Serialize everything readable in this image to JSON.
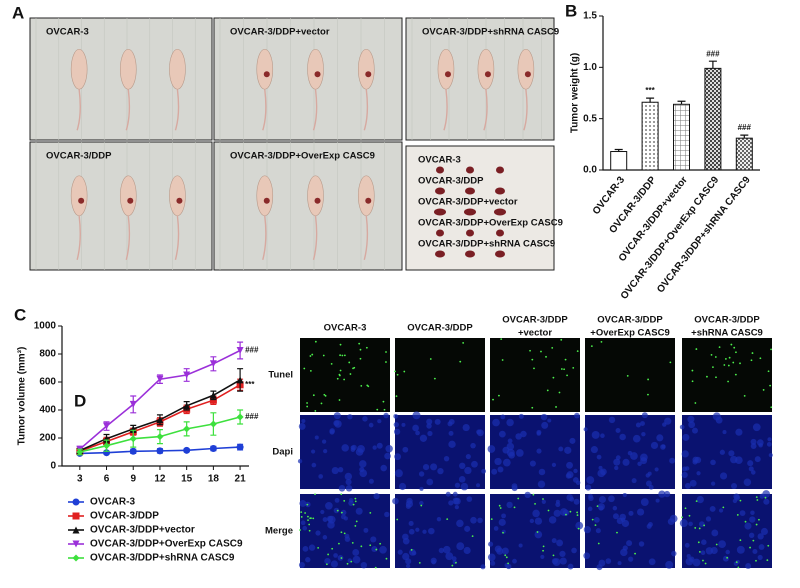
{
  "panels": {
    "a": "A",
    "b": "B",
    "c": "C",
    "d": "D"
  },
  "photo_labels": [
    "OVCAR-3",
    "OVCAR-3/DDP+vector",
    "OVCAR-3/DDP+shRNA CASC9",
    "OVCAR-3/DDP",
    "OVCAR-3/DDP+OverExp CASC9"
  ],
  "tumor_labels": [
    "OVCAR-3",
    "OVCAR-3/DDP",
    "OVCAR-3/DDP+vector",
    "OVCAR-3/DDP+OverExp CASC9",
    "OVCAR-3/DDP+shRNA CASC9"
  ],
  "chart_data": [
    {
      "type": "bar",
      "ylabel": "Tumor weight (g)",
      "categories": [
        "OVCAR-3",
        "OVCAR-3/DDP",
        "OVCAR-3/DDP+vector",
        "OVCAR-3/DDP+OverExp CASC9",
        "OVCAR-3/DDP+shRNA CASC9"
      ],
      "values": [
        0.18,
        0.66,
        0.64,
        0.99,
        0.31
      ],
      "errors": [
        0.02,
        0.04,
        0.03,
        0.07,
        0.03
      ],
      "annotations": [
        null,
        "***",
        null,
        "###",
        "###"
      ],
      "ylim": [
        0,
        1.5
      ],
      "yticks": [
        {
          "value": 0,
          "label": "0.0"
        },
        0.5,
        {
          "value": 1,
          "label": "1.0"
        },
        1.5
      ]
    },
    {
      "type": "line",
      "ylabel": "Tumor volume (mm³)",
      "x": [
        3,
        6,
        9,
        12,
        15,
        18,
        21
      ],
      "xlim": [
        1,
        22
      ],
      "xticks": [
        3,
        6,
        9,
        12,
        15,
        18,
        21
      ],
      "ylim": [
        0,
        1000
      ],
      "yticks": [
        0,
        200,
        400,
        600,
        800,
        1000
      ],
      "series": [
        {
          "name": "OVCAR-3",
          "color": "#1f3fd6",
          "marker": "circle",
          "values": [
            90,
            95,
            105,
            108,
            112,
            125,
            135
          ],
          "errors": [
            10,
            10,
            15,
            15,
            10,
            15,
            20
          ]
        },
        {
          "name": "OVCAR-3/DDP",
          "color": "#e02020",
          "marker": "square",
          "values": [
            105,
            175,
            245,
            315,
            405,
            470,
            580
          ],
          "errors": [
            15,
            30,
            25,
            30,
            30,
            30,
            40
          ],
          "end_label": "***"
        },
        {
          "name": "OVCAR-3/DDP+vector",
          "color": "#111111",
          "marker": "triangle",
          "values": [
            110,
            195,
            265,
            330,
            430,
            505,
            615
          ],
          "errors": [
            15,
            30,
            25,
            35,
            30,
            30,
            80
          ]
        },
        {
          "name": "OVCAR-3/DDP+OverExp CASC9",
          "color": "#9b30d9",
          "marker": "down",
          "values": [
            120,
            285,
            440,
            620,
            650,
            730,
            825
          ],
          "errors": [
            20,
            30,
            60,
            30,
            45,
            50,
            60
          ],
          "end_label": "###"
        },
        {
          "name": "OVCAR-3/DDP+shRNA CASC9",
          "color": "#3de03d",
          "marker": "diamond",
          "values": [
            100,
            145,
            195,
            210,
            265,
            300,
            350
          ],
          "errors": [
            20,
            40,
            60,
            50,
            50,
            80,
            50
          ],
          "end_label": "###"
        }
      ]
    }
  ],
  "microscopy": {
    "columns": [
      [
        "OVCAR-3"
      ],
      [
        "OVCAR-3/DDP"
      ],
      [
        "OVCAR-3/DDP",
        "+vector"
      ],
      [
        "OVCAR-3/DDP",
        "+OverExp CASC9"
      ],
      [
        "OVCAR-3/DDP",
        "+shRNA CASC9"
      ]
    ],
    "rows": [
      "Tunel",
      "Dapi",
      "Merge"
    ]
  }
}
